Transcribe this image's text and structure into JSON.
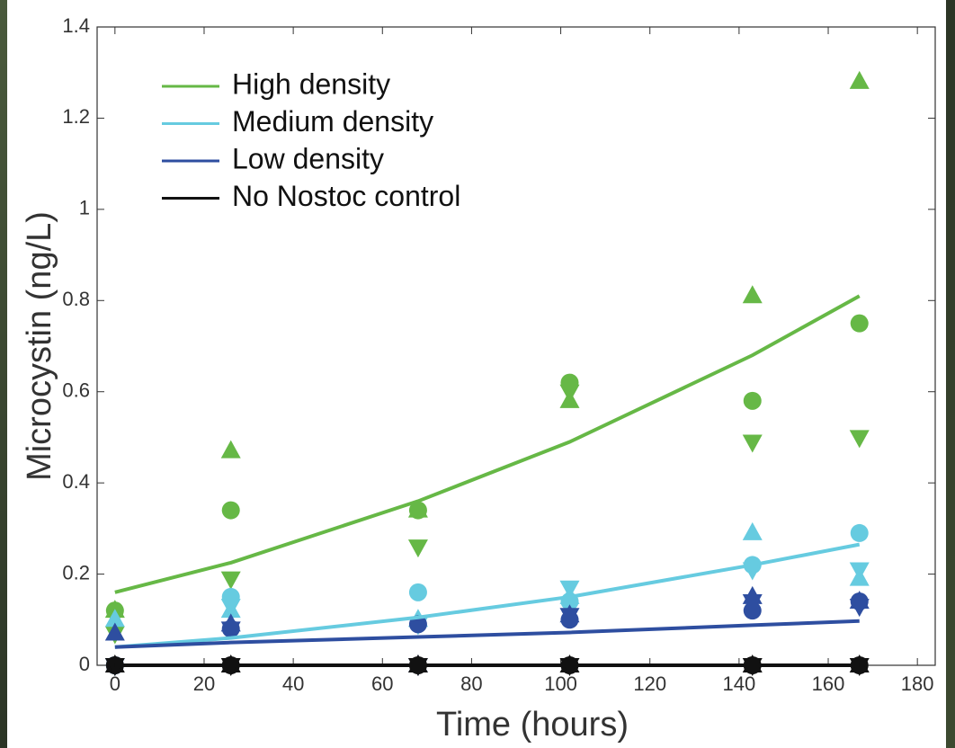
{
  "chart_data": {
    "type": "scatter-fit",
    "x_label": "Time (hours)",
    "y_label": "Microcystin (ng/L)",
    "x": [
      0,
      26,
      68,
      102,
      143,
      167
    ],
    "xlim": [
      -4,
      184
    ],
    "ylim": [
      0,
      1.4
    ],
    "xticks": [
      0,
      20,
      40,
      60,
      80,
      100,
      120,
      140,
      160,
      180
    ],
    "yticks": [
      0,
      0.2,
      0.4,
      0.6,
      0.8,
      1,
      1.2,
      1.4
    ],
    "markers": [
      "circle",
      "triangle-up",
      "triangle-down"
    ],
    "legend": "upper left",
    "series": [
      {
        "name": "High density",
        "color": "#66b846",
        "values": [
          0.16,
          0.225,
          0.36,
          0.49,
          0.68,
          0.81
        ],
        "replicates": [
          [
            0.12,
            0.34,
            0.34,
            0.62,
            0.58,
            0.75
          ],
          [
            0.12,
            0.47,
            0.34,
            0.58,
            0.81,
            1.28
          ],
          [
            0.07,
            0.19,
            0.26,
            0.6,
            0.49,
            0.5
          ]
        ]
      },
      {
        "name": "Medium density",
        "color": "#66cbe0",
        "values": [
          0.04,
          0.06,
          0.105,
          0.15,
          0.22,
          0.265
        ],
        "replicates": [
          [
            0,
            0.15,
            0.16,
            0.14,
            0.22,
            0.29
          ],
          [
            0.1,
            0.12,
            0.1,
            0.15,
            0.29,
            0.19
          ],
          [
            0,
            0.13,
            0.09,
            0.17,
            0.21,
            0.21
          ]
        ]
      },
      {
        "name": "Low density",
        "color": "#2e4ea0",
        "values": [
          0.04,
          0.05,
          0.062,
          0.072,
          0.088,
          0.097
        ],
        "replicates": [
          [
            0,
            0.08,
            0.09,
            0.1,
            0.12,
            0.14
          ],
          [
            0.07,
            0.09,
            0,
            0.11,
            0.15,
            0.14
          ],
          [
            0,
            0.08,
            0,
            0.11,
            0.14,
            0.13
          ]
        ]
      },
      {
        "name": "No Nostoc control",
        "color": "#111111",
        "values": [
          0,
          0,
          0,
          0,
          0,
          0
        ],
        "replicates": [
          [
            0,
            0,
            0,
            0,
            0,
            0
          ],
          [
            0,
            0,
            0,
            0,
            0,
            0
          ],
          [
            0,
            0,
            0,
            0,
            0,
            0
          ]
        ]
      }
    ]
  }
}
